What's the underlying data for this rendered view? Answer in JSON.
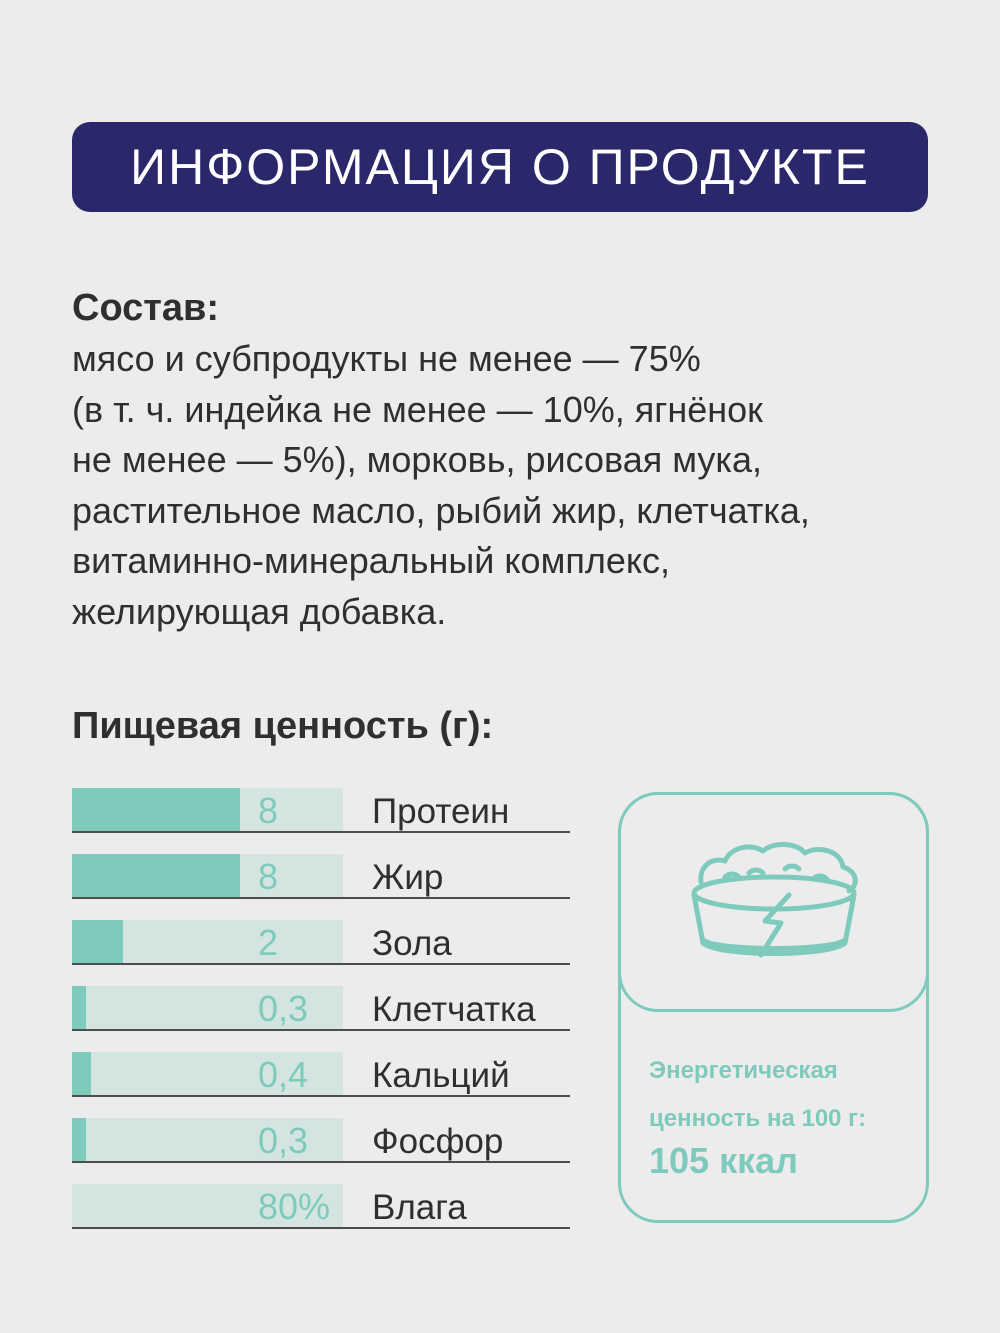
{
  "header": {
    "title": "ИНФОРМАЦИЯ О ПРОДУКТЕ"
  },
  "composition": {
    "heading": "Состав:",
    "lines": [
      "мясо и субпродукты не менее — 75%",
      "(в т. ч. индейка не менее — 10%, ягнёнок",
      "не менее — 5%), морковь, рисовая мука,",
      "растительное масло, рыбий жир, клетчатка,",
      "витаминно-минеральный комплекс,",
      "желирующая добавка."
    ]
  },
  "nutrition": {
    "heading": "Пищевая ценность (г):",
    "rows": [
      {
        "value": "8",
        "label": "Протеин",
        "fill_fraction": 0.62
      },
      {
        "value": "8",
        "label": "Жир",
        "fill_fraction": 0.62
      },
      {
        "value": "2",
        "label": "Зола",
        "fill_fraction": 0.19
      },
      {
        "value": "0,3",
        "label": "Клетчатка",
        "fill_fraction": 0.05
      },
      {
        "value": "0,4",
        "label": "Кальций",
        "fill_fraction": 0.07
      },
      {
        "value": "0,3",
        "label": "Фосфор",
        "fill_fraction": 0.05
      },
      {
        "value": "80%",
        "label": "Влага",
        "fill_fraction": 0.0
      }
    ]
  },
  "energy": {
    "label_line1": "Энергетическая",
    "label_line2": "ценность на 100 г:",
    "value": "105 ккал",
    "icon": "food-bowl-icon",
    "accent_color": "#7ecbbd"
  },
  "colors": {
    "banner_bg": "#2b276b",
    "background": "#ececec",
    "bar_fill": "#7ecbbd",
    "bar_track": "#d4e4e0",
    "text": "#2f2f2f"
  }
}
